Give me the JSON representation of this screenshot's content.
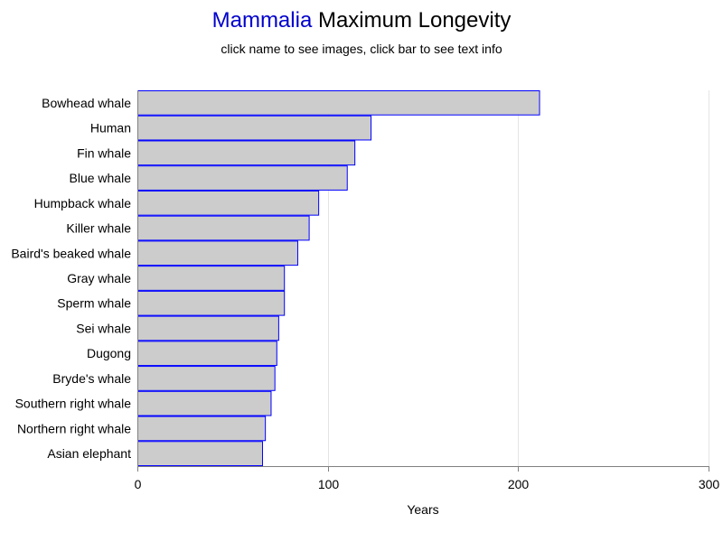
{
  "header": {
    "title_taxon": "Mammalia",
    "title_rest": " Maximum Longevity",
    "subtitle": "click name to see images, click bar to see text info"
  },
  "colors": {
    "title_taxon": "#0000cc",
    "bar_fill": "#cccccc",
    "bar_stroke": "#0000ff",
    "gridline": "#e4e4e4",
    "axis": "#808080"
  },
  "chart_data": {
    "type": "bar",
    "orientation": "horizontal",
    "title": "Mammalia Maximum Longevity",
    "subtitle": "click name to see images, click bar to see text info",
    "xlabel": "Years",
    "ylabel": "",
    "xlim": [
      0,
      300
    ],
    "xticks": [
      0,
      100,
      200,
      300
    ],
    "grid": "vertical gridlines",
    "legend": "none",
    "categories": [
      "Bowhead whale",
      "Human",
      "Fin whale",
      "Blue whale",
      "Humpback whale",
      "Killer whale",
      "Baird's beaked whale",
      "Gray whale",
      "Sperm whale",
      "Sei whale",
      "Dugong",
      "Bryde's whale",
      "Southern right whale",
      "Northern right whale",
      "Asian elephant"
    ],
    "values": [
      211,
      122.5,
      114,
      110,
      95,
      90,
      84,
      77,
      77,
      74,
      73,
      72,
      70,
      67,
      65.5
    ]
  }
}
